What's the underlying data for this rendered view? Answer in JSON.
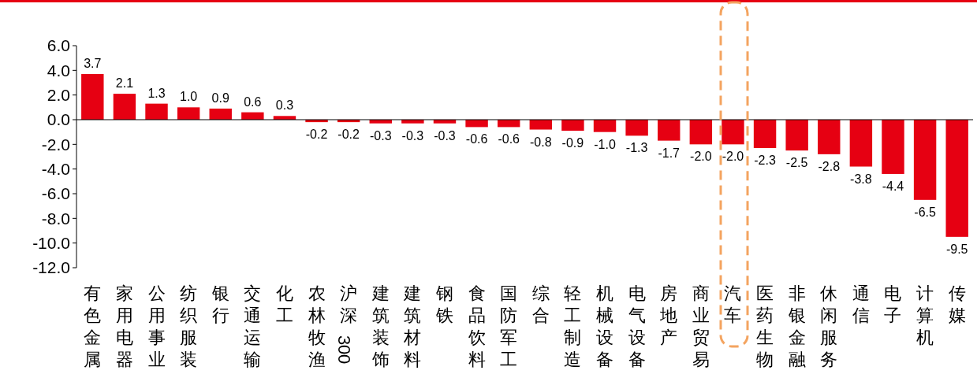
{
  "chart_data": {
    "type": "bar",
    "categories": [
      "有色金属",
      "家用电器",
      "公用事业",
      "纺织服装",
      "银行",
      "交通运输",
      "化工",
      "农林牧渔",
      "沪深300",
      "建筑装饰",
      "建筑材料",
      "钢铁",
      "食品饮料",
      "国防军工",
      "综合",
      "轻工制造",
      "机械设备",
      "电气设备",
      "房地产",
      "商业贸易",
      "汽车",
      "医药生物",
      "非银金融",
      "休闲服务",
      "通信",
      "电子",
      "计算机",
      "传媒"
    ],
    "values": [
      3.7,
      2.1,
      1.3,
      1.0,
      0.9,
      0.6,
      0.3,
      -0.2,
      -0.2,
      -0.3,
      -0.3,
      -0.3,
      -0.6,
      -0.6,
      -0.8,
      -0.9,
      -1.0,
      -1.3,
      -1.7,
      -2.0,
      -2.0,
      -2.3,
      -2.5,
      -2.8,
      -3.8,
      -4.4,
      -6.5,
      -9.5
    ],
    "value_labels": [
      "3.7",
      "2.1",
      "1.3",
      "1.0",
      "0.9",
      "0.6",
      "0.3",
      "-0.2",
      "-0.2",
      "-0.3",
      "-0.3",
      "-0.3",
      "-0.6",
      "-0.6",
      "-0.8",
      "-0.9",
      "-1.0",
      "-1.3",
      "-1.7",
      "-2.0",
      "-2.0",
      "-2.3",
      "-2.5",
      "-2.8",
      "-3.8",
      "-4.4",
      "-6.5",
      "-9.5"
    ],
    "color": "#e60012",
    "ylim": [
      -12,
      6
    ],
    "yticks": [
      {
        "value": 6,
        "label": "6.0"
      },
      {
        "value": 4,
        "label": "4.0"
      },
      {
        "value": 2,
        "label": "2.0"
      },
      {
        "value": 0,
        "label": "0.0"
      },
      {
        "value": -2,
        "label": "-2.0"
      },
      {
        "value": -4,
        "label": "-4.0"
      },
      {
        "value": -6,
        "label": "-6.0"
      },
      {
        "value": -8,
        "label": "-8.0"
      },
      {
        "value": -10,
        "label": "-10.0"
      },
      {
        "value": -12,
        "label": "-12.0"
      }
    ]
  }
}
